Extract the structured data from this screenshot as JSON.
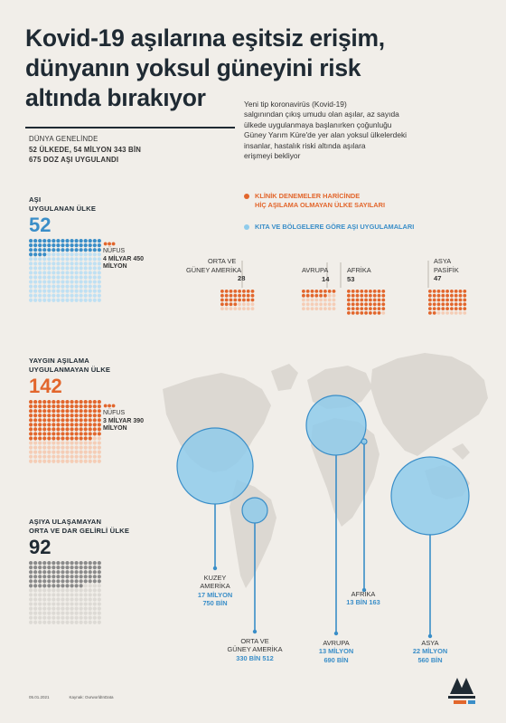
{
  "title_lines": [
    "Kovid-19 aşılarına eşitsiz erişim,",
    "dünyanın yoksul güneyini risk",
    "altında bırakıyor"
  ],
  "intro_lines": [
    "Yeni tip koronavirüs (Kovid-19)",
    "salgınından çıkış umudu olan aşılar, az sayıda",
    "ülkede uygulanmaya başlanırken çoğunluğu",
    "Güney Yarım Küre'de yer alan yoksul ülkelerdeki",
    "insanlar, hastalık riski altında aşılara",
    "erişmeyi bekliyor"
  ],
  "world": {
    "line1": "DÜNYA GENELİNDE",
    "line2": "52 ÜLKEDE, 54 MİLYON 343 BİN",
    "line3": "675 DOZ AŞI UYGULANDI"
  },
  "legend": {
    "orange_line1": "KLİNİK DENEMELER HARİCİNDE",
    "orange_line2": "HİÇ AŞILAMA OLMAYAN ÜLKE SAYILARI",
    "blue_line1": "KITA VE BÖLGELERE GÖRE AŞI UYGULAMALARI"
  },
  "sections": [
    {
      "label1": "AŞI",
      "label2": "UYGULANAN ÜLKE",
      "number": "52",
      "pop_label": "NÜFUS",
      "pop_value1": "4 MİLYAR 450",
      "pop_value2": "MİLYON",
      "color": "#3a8ec8",
      "dots": 52
    },
    {
      "label1": "YAYGIN AŞILAMA",
      "label2": "UYGULANMAYAN ÜLKE",
      "number": "142",
      "pop_label": "NÜFUS",
      "pop_value1": "3 MİLYAR 390",
      "pop_value2": "MİLYON",
      "color": "#e2662c",
      "dots": 142
    },
    {
      "label1": "AŞIYA ULAŞAMAYAN",
      "label2": "ORTA VE DAR GELİRLİ ÜLKE",
      "number": "92",
      "color": "#8a8a8a",
      "dots": 92
    }
  ],
  "continents": [
    {
      "name1": "ORTA VE",
      "name2": "GÜNEY AMERİKA",
      "value": "28"
    },
    {
      "name1": "AVRUPA",
      "name2": "",
      "value": "14"
    },
    {
      "name1": "AFRİKA",
      "name2": "",
      "value": "53"
    },
    {
      "name1": "ASYA",
      "name2": "PASİFİK",
      "value": "47"
    }
  ],
  "vaccinations": [
    {
      "name1": "KUZEY",
      "name2": "AMERİKA",
      "value1": "17 MİLYON",
      "value2": "750 BİN"
    },
    {
      "name1": "ORTA VE",
      "name2": "GÜNEY AMERİKA",
      "value1": "330 BİN 512",
      "value2": ""
    },
    {
      "name1": "AFRİKA",
      "name2": "",
      "value1": "13 BİN 163",
      "value2": ""
    },
    {
      "name1": "AVRUPA",
      "name2": "",
      "value1": "13 MİLYON",
      "value2": "690 BİN"
    },
    {
      "name1": "ASYA",
      "name2": "",
      "value1": "22 MİLYON",
      "value2": "560 BİN"
    }
  ],
  "footer": {
    "date": "05.01.2021",
    "source": "Kaynak: OurworldInData"
  },
  "colors": {
    "blue": "#3a8ec8",
    "orange": "#e2662c",
    "grey": "#8a8a8a",
    "map": "#dcd8d2",
    "bubble": "#8fcbeb",
    "bg": "#f1eee9"
  },
  "icons": [
    "people-icon",
    "aa-logo-icon"
  ]
}
